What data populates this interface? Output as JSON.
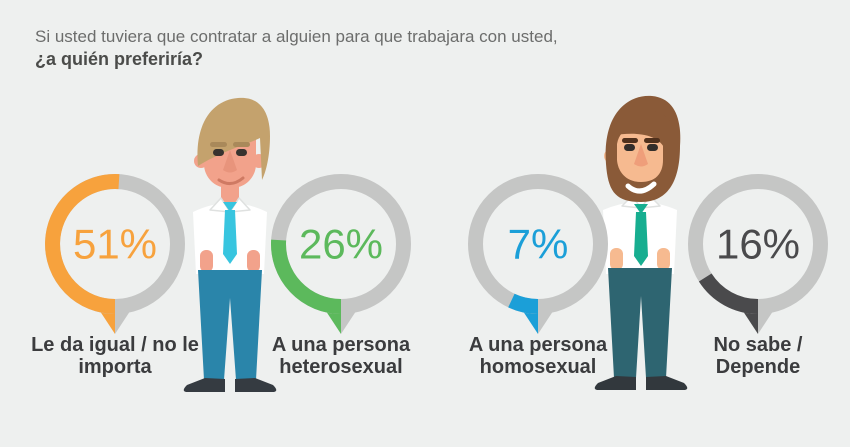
{
  "question": {
    "line1": "Si usted tuviera que contratar a alguien para que trabajara con usted,",
    "line2": "¿a quién preferiría?"
  },
  "gauges": [
    {
      "id": "indifferent",
      "value": 51,
      "pct_label": "51%",
      "label_line1": "Le da igual / no le",
      "label_line2": "importa",
      "color": "#f7a23d"
    },
    {
      "id": "heterosexual",
      "value": 26,
      "pct_label": "26%",
      "label_line1": "A una persona",
      "label_line2": "heterosexual",
      "color": "#5cb95c"
    },
    {
      "id": "homosexual",
      "value": 7,
      "pct_label": "7%",
      "label_line1": "A una persona",
      "label_line2": "homosexual",
      "color": "#1b9fd8"
    },
    {
      "id": "unknown",
      "value": 16,
      "pct_label": "16%",
      "label_line1": "No sabe /",
      "label_line2": "Depende",
      "color": "#4a4a4c"
    }
  ],
  "colors": {
    "background": "#eef0ef",
    "ring_gray": "#c5c6c5",
    "orange": "#f7a23d",
    "green": "#5cb95c",
    "blue": "#1b9fd8",
    "dark": "#4a4a4c",
    "label_text": "#3b3c3e",
    "question_text": "#6c6d6c",
    "question_bold_text": "#4b4c4a"
  },
  "figures": [
    {
      "name": "blonde-businessman",
      "palette": {
        "hair": "#c4a26d",
        "skin": "#f2a28b",
        "brow": "#a9895a",
        "eye": "#38332f",
        "nose": "#e8947c",
        "mouth": "#cf7a63",
        "shirt": "#ffffff",
        "tie": "#38c5df",
        "pants": "#2a85aa",
        "shoes": "#353b41"
      }
    },
    {
      "name": "bearded-businessman",
      "palette": {
        "hair": "#8a5a38",
        "skin": "#f6ba90",
        "brow": "#50311d",
        "eye": "#332e2b",
        "nose": "#ef9e7a",
        "mouth": "#ffffff",
        "shirt": "#ffffff",
        "tie": "#17ae90",
        "pants": "#2e6571",
        "shoes": "#32383d"
      }
    }
  ],
  "chart_data": {
    "type": "pie",
    "variant": "four speech-bubble donut gauges",
    "title": "Si usted tuviera que contratar a alguien para que trabajara con usted, ¿a quién preferiría?",
    "categories": [
      "Le da igual / no le importa",
      "A una persona heterosexual",
      "A una persona homosexual",
      "No sabe / Depende"
    ],
    "values": [
      51,
      26,
      7,
      16
    ],
    "unit": "%",
    "colors": [
      "#f7a23d",
      "#5cb95c",
      "#1b9fd8",
      "#4a4a4c"
    ],
    "layout": "each value shown as colored arc starting at bubble tail (bottom) sweeping through the left side; remainder gray; percent printed in donut hole; label below"
  }
}
